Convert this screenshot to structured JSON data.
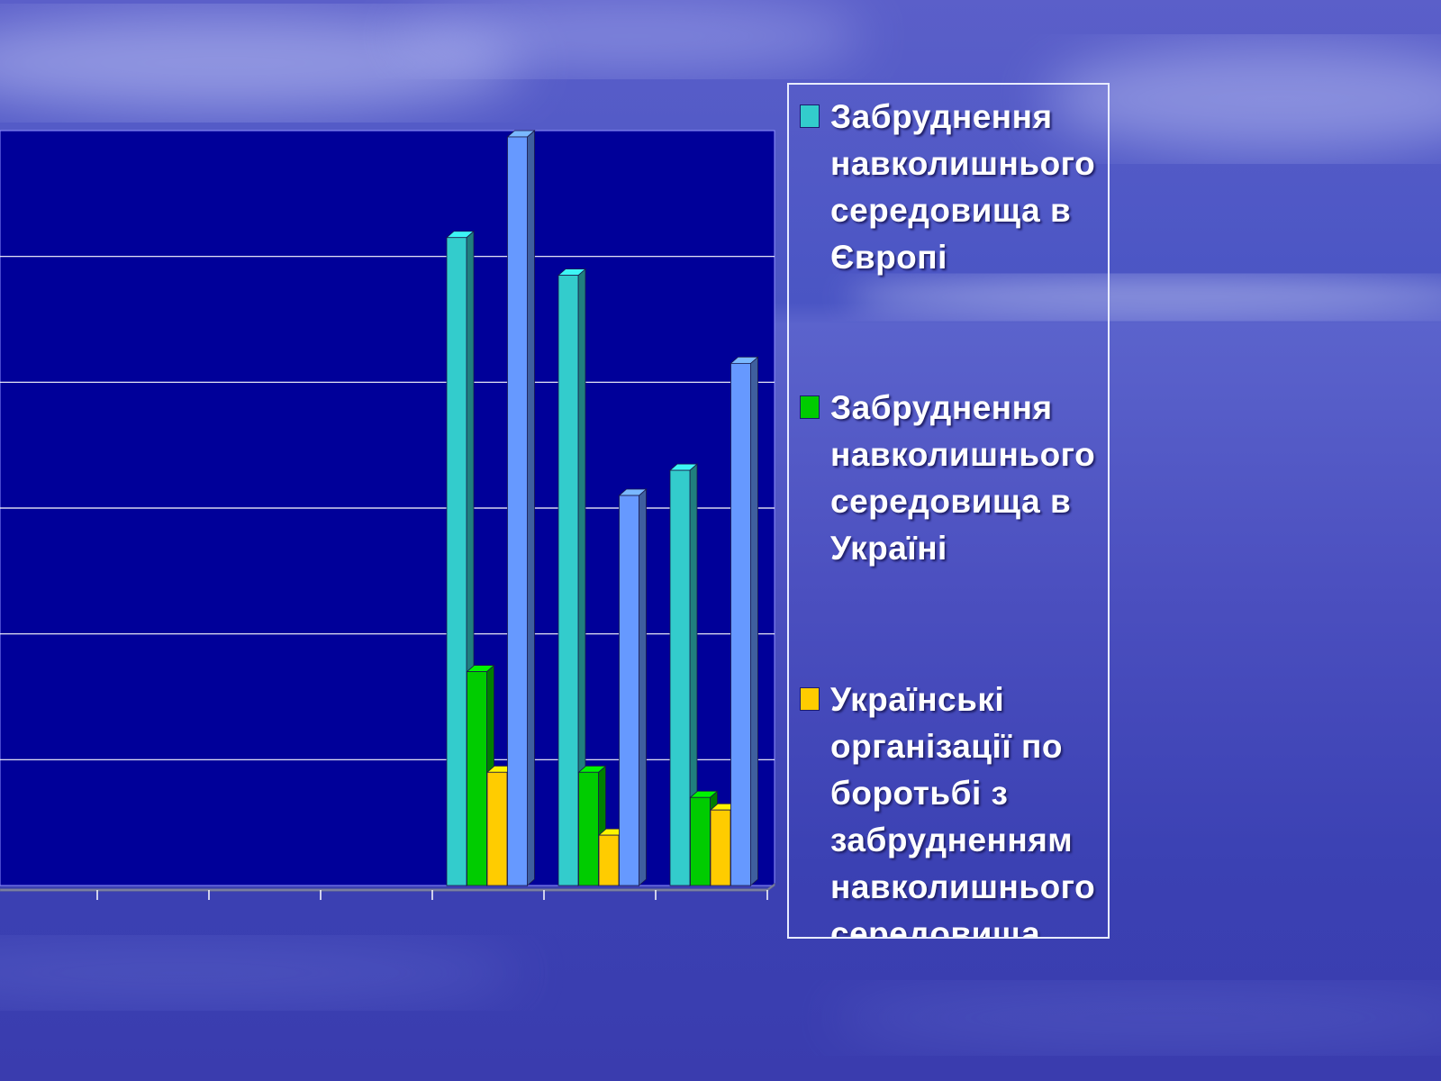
{
  "colors": {
    "plot_background": "#000099",
    "gridline": "#ffffff",
    "background_sky": "#4a55c4"
  },
  "chart_data": {
    "type": "bar",
    "title": "",
    "xlabel": "",
    "ylabel": "",
    "grid": true,
    "legend_position": "right",
    "ylim": [
      0,
      60
    ],
    "category_count": 7,
    "categories": [
      "",
      "",
      "",
      "",
      "",
      "",
      ""
    ],
    "series": [
      {
        "name": "Забруднення навколишнього середовища в Європі",
        "color": "#33cccc",
        "values": [
          0,
          0,
          0,
          0,
          51.5,
          48.5,
          33
        ]
      },
      {
        "name": "Забруднення навколишнього середовища в Україні",
        "color": "#00cc00",
        "values": [
          0,
          0,
          0,
          0,
          17,
          9,
          7
        ]
      },
      {
        "name": "Українські організації по боротьбі з забрудненням навколишнього середовища",
        "color": "#ffcc00",
        "values": [
          0,
          0,
          0,
          0,
          9,
          4,
          6
        ]
      },
      {
        "name": "",
        "color": "#6699ff",
        "values": [
          0,
          0,
          0,
          0,
          59.5,
          31,
          41.5
        ]
      }
    ]
  }
}
